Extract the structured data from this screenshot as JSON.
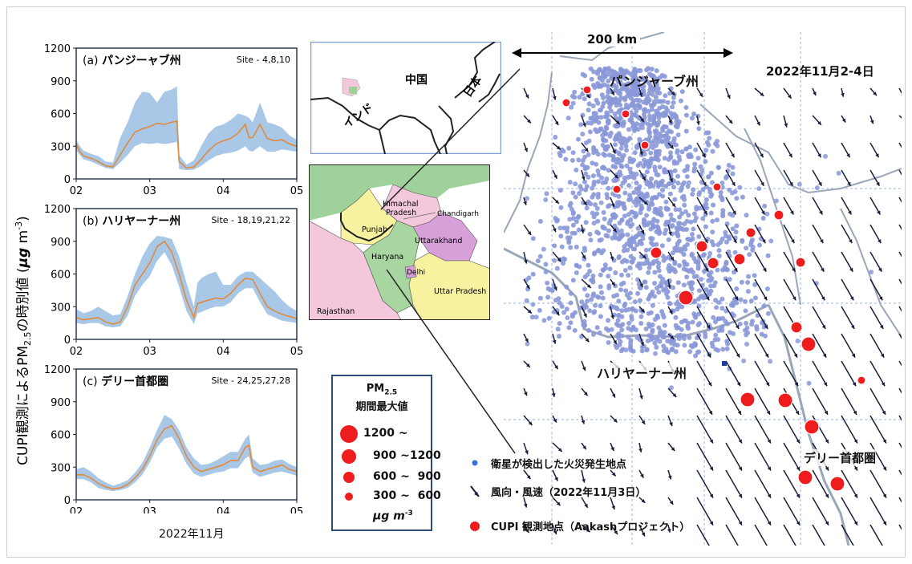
{
  "figure": {
    "date_range": "2022年11月2-4日",
    "scale_label": "200 km",
    "y_axis_label_pre": "CUPI観測によるPM",
    "y_axis_label_sub": "2.5",
    "y_axis_label_post": "の時別値 (",
    "y_axis_unit_mu": "μg",
    "y_axis_unit_rest": " m",
    "y_axis_unit_sup": "-3",
    "y_axis_close": ")",
    "x_axis_label": "2022年11月"
  },
  "chart_data": [
    {
      "type": "line",
      "panel": "(a)",
      "panel_title": "パンジーャブ州",
      "sites": "Site - 4,8,10",
      "x": [
        2.0,
        2.05,
        2.1,
        2.2,
        2.3,
        2.4,
        2.5,
        2.6,
        2.7,
        2.8,
        2.9,
        3.0,
        3.1,
        3.2,
        3.3,
        3.37,
        3.4,
        3.5,
        3.6,
        3.7,
        3.8,
        3.9,
        4.0,
        4.1,
        4.2,
        4.3,
        4.35,
        4.4,
        4.5,
        4.6,
        4.7,
        4.8,
        4.9,
        5.0
      ],
      "series": [
        {
          "values": [
            320,
            250,
            210,
            190,
            160,
            120,
            110,
            220,
            330,
            430,
            460,
            480,
            510,
            500,
            520,
            530,
            160,
            100,
            110,
            180,
            260,
            320,
            350,
            370,
            420,
            500,
            380,
            380,
            500,
            370,
            350,
            360,
            320,
            300
          ]
        }
      ],
      "band_low": [
        260,
        220,
        180,
        160,
        130,
        100,
        90,
        150,
        220,
        300,
        330,
        320,
        330,
        320,
        330,
        340,
        90,
        80,
        85,
        120,
        170,
        210,
        230,
        240,
        260,
        300,
        260,
        250,
        300,
        250,
        250,
        270,
        260,
        250
      ],
      "band_high": [
        360,
        300,
        260,
        230,
        210,
        160,
        150,
        380,
        520,
        700,
        800,
        790,
        700,
        800,
        820,
        850,
        220,
        130,
        170,
        300,
        420,
        480,
        500,
        540,
        600,
        580,
        560,
        520,
        700,
        520,
        500,
        470,
        400,
        360
      ],
      "xlim": [
        2,
        5
      ],
      "ylim": [
        0,
        1200
      ],
      "xticks": [
        "02",
        "03",
        "04",
        "05"
      ],
      "yticks": [
        "0",
        "300",
        "600",
        "900",
        "1200"
      ]
    },
    {
      "type": "line",
      "panel": "(b)",
      "panel_title": "ハリヤーナー州",
      "sites": "Site - 18,19,21,22",
      "x": [
        2.0,
        2.1,
        2.2,
        2.3,
        2.4,
        2.5,
        2.6,
        2.7,
        2.8,
        2.9,
        3.0,
        3.1,
        3.2,
        3.3,
        3.4,
        3.5,
        3.6,
        3.65,
        3.7,
        3.8,
        3.9,
        4.0,
        4.1,
        4.2,
        4.3,
        4.4,
        4.5,
        4.6,
        4.7,
        4.8,
        4.9,
        5.0
      ],
      "series": [
        {
          "values": [
            200,
            180,
            190,
            200,
            160,
            140,
            160,
            300,
            500,
            600,
            700,
            850,
            900,
            800,
            600,
            360,
            200,
            330,
            340,
            360,
            380,
            370,
            420,
            500,
            560,
            550,
            420,
            300,
            260,
            230,
            210,
            190
          ]
        }
      ],
      "band_low": [
        150,
        140,
        150,
        150,
        120,
        110,
        120,
        220,
        400,
        500,
        580,
        720,
        800,
        680,
        480,
        260,
        140,
        240,
        250,
        280,
        300,
        300,
        340,
        420,
        470,
        470,
        340,
        230,
        200,
        170,
        160,
        150
      ],
      "band_high": [
        280,
        240,
        260,
        300,
        260,
        220,
        230,
        400,
        600,
        760,
        880,
        950,
        940,
        920,
        760,
        520,
        300,
        520,
        560,
        600,
        620,
        500,
        500,
        580,
        620,
        620,
        560,
        500,
        440,
        360,
        300,
        260
      ],
      "xlim": [
        2,
        5
      ],
      "ylim": [
        0,
        1200
      ],
      "xticks": [
        "02",
        "03",
        "04",
        "05"
      ],
      "yticks": [
        "0",
        "300",
        "600",
        "900",
        "1200"
      ]
    },
    {
      "type": "line",
      "panel": "(c)",
      "panel_title": "デリー首都圏",
      "sites": "Site - 24,25,27,28",
      "x": [
        2.0,
        2.1,
        2.2,
        2.3,
        2.4,
        2.5,
        2.6,
        2.7,
        2.8,
        2.9,
        3.0,
        3.1,
        3.2,
        3.3,
        3.4,
        3.5,
        3.6,
        3.7,
        3.8,
        3.9,
        4.0,
        4.1,
        4.2,
        4.3,
        4.35,
        4.4,
        4.5,
        4.6,
        4.7,
        4.8,
        4.9,
        5.0
      ],
      "series": [
        {
          "values": [
            230,
            230,
            200,
            150,
            120,
            100,
            110,
            140,
            200,
            280,
            400,
            550,
            650,
            680,
            560,
            400,
            300,
            260,
            280,
            300,
            320,
            360,
            360,
            480,
            500,
            300,
            260,
            280,
            300,
            320,
            280,
            260
          ]
        }
      ],
      "band_low": [
        190,
        190,
        160,
        110,
        90,
        80,
        90,
        110,
        160,
        230,
        340,
        480,
        560,
        580,
        470,
        330,
        240,
        210,
        230,
        250,
        260,
        290,
        290,
        380,
        400,
        250,
        210,
        230,
        250,
        260,
        240,
        220
      ],
      "band_high": [
        280,
        300,
        260,
        200,
        160,
        130,
        150,
        180,
        250,
        340,
        480,
        640,
        780,
        740,
        640,
        480,
        380,
        320,
        330,
        360,
        400,
        440,
        440,
        560,
        600,
        380,
        320,
        330,
        360,
        370,
        330,
        300
      ],
      "xlim": [
        2,
        5
      ],
      "ylim": [
        0,
        1200
      ],
      "xticks": [
        "02",
        "03",
        "04",
        "05"
      ],
      "yticks": [
        "0",
        "300",
        "600",
        "900",
        "1200"
      ]
    }
  ],
  "colors": {
    "line": "#e08a3c",
    "band": "#a9c8e8",
    "fire": "#8a98d8",
    "cupi": "#ee1c1c",
    "arrow": "#1b1e3a",
    "border": "#1f2a44",
    "inset_border": "#7f9fd0"
  },
  "inset_world": {
    "china": "中国",
    "india": "インド",
    "japan": "日本"
  },
  "inset_region": {
    "himachal_1": "Himachal",
    "himachal_2": "Pradesh",
    "chandigarh": "Chandigarh",
    "punjab": "Punjab",
    "uttarakhand": "Uttarakhand",
    "haryana": "Haryana",
    "delhi": "Delhi",
    "uttar_pradesh": "Uttar Pradesh",
    "rajasthan": "Rajasthan"
  },
  "map": {
    "label_punjab": "パンジャーブ州",
    "label_haryana": "ハリヤーナー州",
    "label_delhi": "デリー首都圏"
  },
  "pm_legend": {
    "title_pm": "PM",
    "title_sub": "2.5",
    "title_2": "期間最大値",
    "items": [
      {
        "label": "1200 ~",
        "r": 11
      },
      {
        "label": "900 ~1200",
        "r": 9
      },
      {
        "label": "600 ~  900",
        "r": 7
      },
      {
        "label": "300 ~  600",
        "r": 5
      }
    ],
    "unit_mu": "μg m",
    "unit_sup": "-3"
  },
  "map_legend": {
    "fire": "衛星が検出した火災発生地点",
    "wind": "風向・風速（2022年11月3日）",
    "cupi": "CUPI 観測地点（Aakashプロジェクト）"
  }
}
